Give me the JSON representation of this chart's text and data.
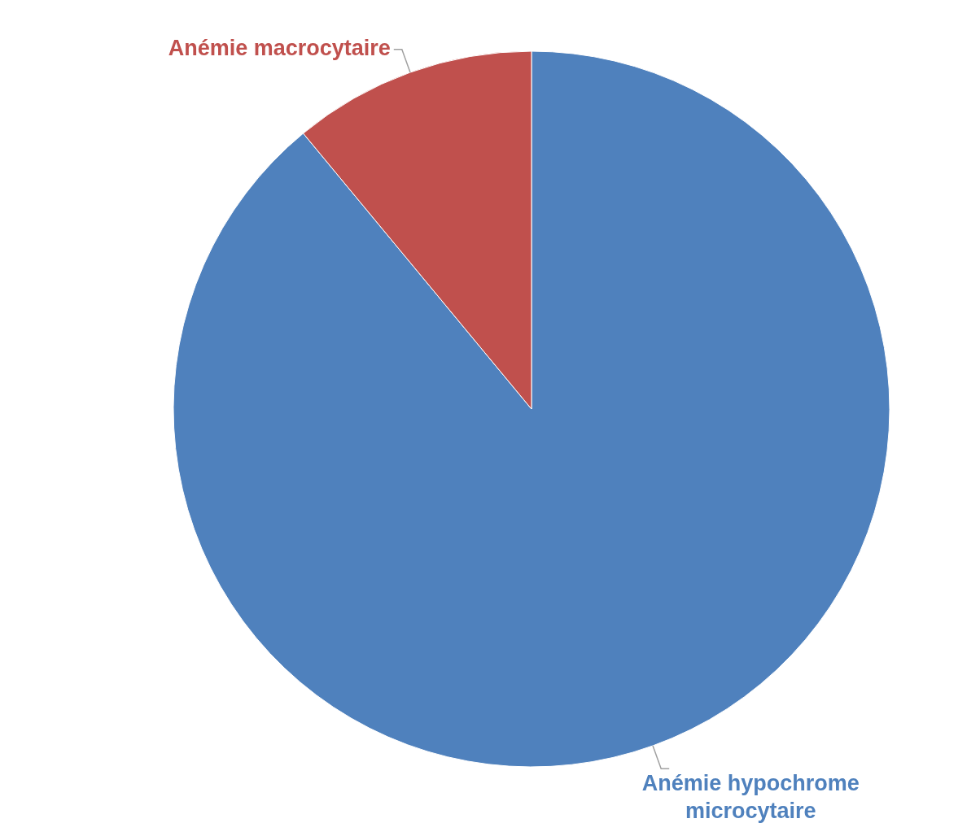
{
  "chart_data": {
    "type": "pie",
    "categories": [
      "Anémie hypochrome microcytaire",
      "Anémie macrocytaire"
    ],
    "values": [
      89,
      11
    ],
    "colors": [
      "#4f81bd",
      "#c0504d"
    ]
  }
}
